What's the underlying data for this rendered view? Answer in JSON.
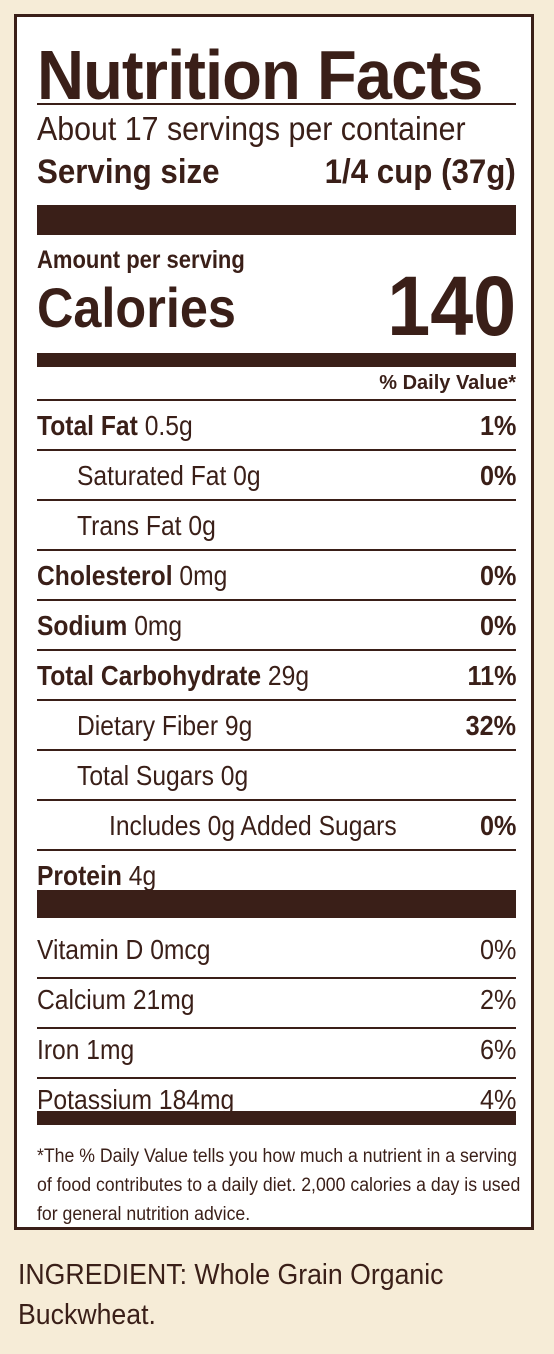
{
  "label": {
    "title": "Nutrition Facts",
    "servings_per_container": "About 17 servings per container",
    "serving_size_label": "Serving size",
    "serving_size_value": "1/4 cup (37g)",
    "amount_per_serving": "Amount per serving",
    "calories_label": "Calories",
    "calories_value": "140",
    "daily_value_header": "% Daily Value*"
  },
  "nutrients": [
    {
      "name": "Total Fat",
      "amount": "0.5g",
      "dv": "1%"
    },
    {
      "name": "Saturated Fat",
      "amount": "0g",
      "dv": "0%"
    },
    {
      "name": "Trans Fat",
      "amount": "0g",
      "dv": ""
    },
    {
      "name": "Cholesterol",
      "amount": "0mg",
      "dv": "0%"
    },
    {
      "name": "Sodium",
      "amount": "0mg",
      "dv": "0%"
    },
    {
      "name": "Total Carbohydrate",
      "amount": "29g",
      "dv": "11%"
    },
    {
      "name": "Dietary Fiber",
      "amount": "9g",
      "dv": "32%"
    },
    {
      "name": "Total Sugars",
      "amount": "0g",
      "dv": ""
    },
    {
      "name": "Includes 0g Added Sugars",
      "amount": "",
      "dv": "0%"
    },
    {
      "name": "Protein",
      "amount": "4g",
      "dv": ""
    }
  ],
  "vitamins": [
    {
      "name": "Vitamin D 0mcg",
      "dv": "0%"
    },
    {
      "name": "Calcium 21mg",
      "dv": "2%"
    },
    {
      "name": "Iron 1mg",
      "dv": "6%"
    },
    {
      "name": "Potassium 184mg",
      "dv": "4%"
    }
  ],
  "footnote": "*The % Daily Value tells you how much a nutrient in a serving of food contributes to a daily diet. 2,000 calories a day is used for general nutrition advice.",
  "ingredients": "INGREDIENT: Whole Grain Organic Buckwheat.",
  "colors": {
    "ink": "#3a1f18",
    "background": "#f6ecd7",
    "panel": "#ffffff"
  }
}
